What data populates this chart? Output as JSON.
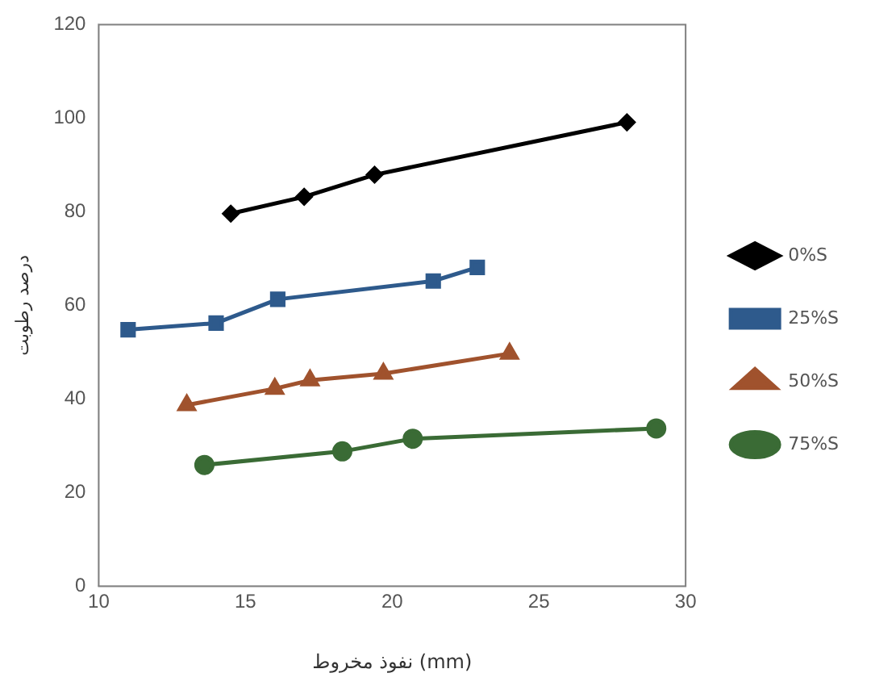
{
  "chart_data": {
    "type": "line",
    "xlabel": "نفوذ مخروط (mm)",
    "ylabel": "درصد رطوبت",
    "xlim": [
      10,
      30
    ],
    "xticks": [
      10,
      15,
      20,
      25,
      30
    ],
    "ylim": [
      0,
      120
    ],
    "yticks": [
      0,
      20,
      40,
      60,
      80,
      100,
      120
    ],
    "grid": false,
    "legend": "right",
    "line_style": "solid",
    "series": [
      {
        "name": "0%S",
        "color": "#000000",
        "marker": "diamond",
        "x": [
          14.5,
          17.0,
          19.4,
          28.0
        ],
        "values": [
          79.6,
          83.2,
          87.9,
          99.1
        ]
      },
      {
        "name": "25%S",
        "color": "#2e5a8c",
        "marker": "square",
        "x": [
          11.0,
          14.0,
          16.1,
          21.4,
          22.9
        ],
        "values": [
          54.8,
          56.2,
          61.3,
          65.2,
          68.1
        ]
      },
      {
        "name": "50%S",
        "color": "#a0522d",
        "marker": "triangle",
        "x": [
          13.0,
          16.0,
          17.2,
          19.7,
          24.0
        ],
        "values": [
          38.7,
          42.2,
          44.0,
          45.4,
          49.7
        ]
      },
      {
        "name": "75%S",
        "color": "#3a6b35",
        "marker": "circle",
        "x": [
          13.6,
          18.3,
          20.7,
          29.0
        ],
        "values": [
          25.9,
          28.8,
          31.5,
          33.7
        ]
      }
    ]
  }
}
